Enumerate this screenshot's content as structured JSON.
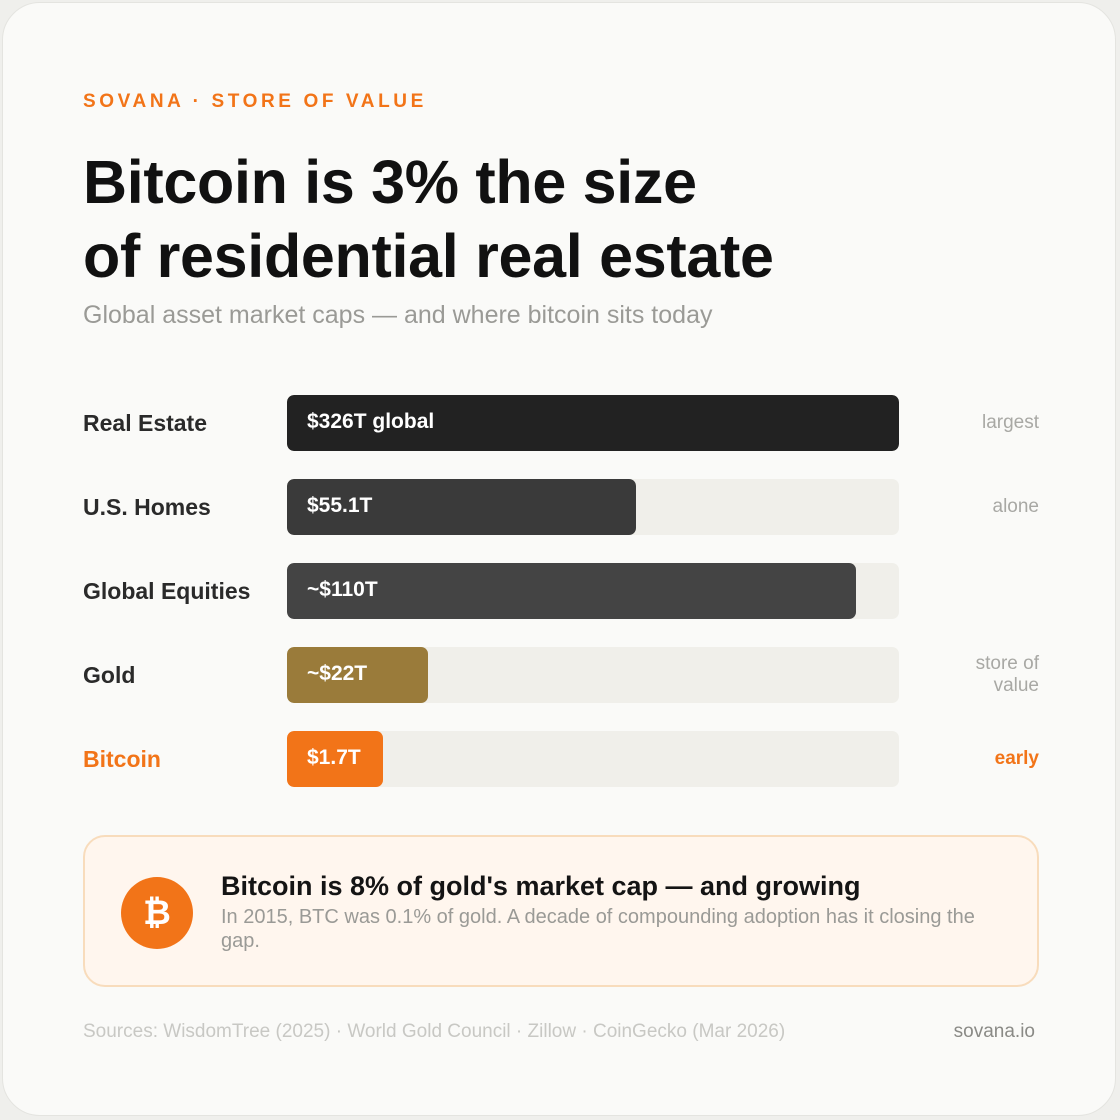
{
  "brand": {
    "eyebrow": "SOVANA · STORE OF VALUE",
    "accent_color": "#f27418",
    "site": "sovana.io"
  },
  "callout": {
    "icon": "bitcoin-icon",
    "icon_glyph": "₿",
    "headline": "Bitcoin is 8% of gold's market cap — and growing",
    "body": "In 2015, BTC was 0.1% of gold. A decade of compounding adoption has it closing the gap."
  },
  "footer": {
    "sources": "Sources: WisdomTree (2025) · World Gold Council · Zillow · CoinGecko (Mar 2026)"
  },
  "chart_data": {
    "type": "bar",
    "orientation": "horizontal",
    "title": "Bitcoin is 3% the size of residential real estate",
    "title_lines": [
      "Bitcoin is 3% the size",
      "of residential real estate"
    ],
    "subtitle": "Global asset market caps — and where bitcoin sits today",
    "unit": "USD trillions",
    "xlim": [
      0,
      326
    ],
    "grid": false,
    "legend": "none",
    "categories": [
      "Real Estate",
      "U.S. Homes",
      "Global Equities",
      "Gold",
      "Bitcoin"
    ],
    "values": [
      326,
      55.1,
      110,
      22,
      1.7
    ],
    "display_fraction": [
      1.0,
      0.57,
      0.93,
      0.23,
      0.157
    ],
    "data_labels": [
      "$326T global",
      "$55.1T",
      "~$110T",
      "~$22T",
      "$1.7T"
    ],
    "notes": [
      "largest",
      "alone",
      "",
      "store of value",
      "early"
    ],
    "colors": [
      "#222222",
      "#3a3a3a",
      "#444444",
      "#9a7b3a",
      "#f27418"
    ],
    "track_color": "#f0efea",
    "highlight": "Bitcoin"
  }
}
